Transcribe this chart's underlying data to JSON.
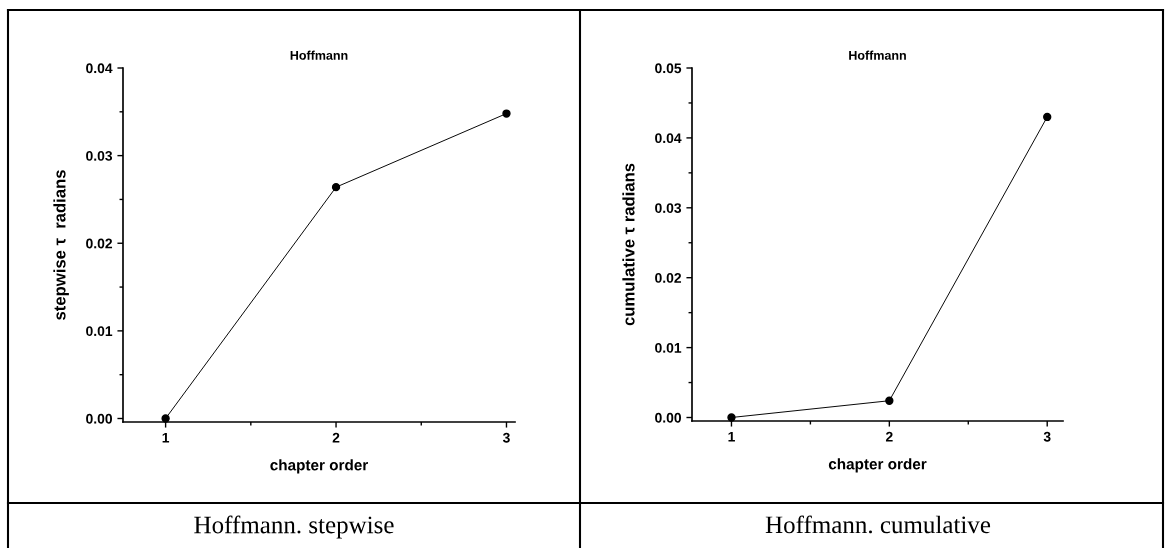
{
  "chart_data": [
    {
      "type": "line",
      "title": "Hoffmann",
      "xlabel": "chapter order",
      "ylabel": "stepwise τ  radians",
      "x": [
        1,
        2,
        3
      ],
      "series": [
        {
          "color": "#000000",
          "values": [
            0.0,
            0.0264,
            0.0348
          ]
        }
      ],
      "marker": "circle",
      "line_style": "solid",
      "xlim": [
        0.75,
        3.05
      ],
      "xticks": [
        1,
        2,
        3
      ],
      "ylim": [
        -0.0004,
        0.04
      ],
      "yticks": [
        {
          "value": 0,
          "label": "0.00"
        },
        0.01,
        0.02,
        0.03,
        0.04
      ],
      "grid": false,
      "annotations": [
        "Hoffmann. stepwise"
      ]
    },
    {
      "type": "line",
      "title": "Hoffmann",
      "xlabel": "chapter order",
      "ylabel": "cumulative τ radians",
      "x": [
        1,
        2,
        3
      ],
      "series": [
        {
          "color": "#000000",
          "values": [
            0.0,
            0.0024,
            0.043
          ]
        }
      ],
      "marker": "circle",
      "line_style": "solid",
      "xlim": [
        0.75,
        3.1
      ],
      "xticks": [
        1,
        2,
        3
      ],
      "ylim": [
        -0.0005,
        0.05
      ],
      "yticks": [
        {
          "value": 0,
          "label": "0.00"
        },
        0.01,
        0.02,
        0.03,
        0.04,
        0.05
      ],
      "grid": false,
      "annotations": [
        "Hoffmann. cumulative"
      ]
    }
  ]
}
